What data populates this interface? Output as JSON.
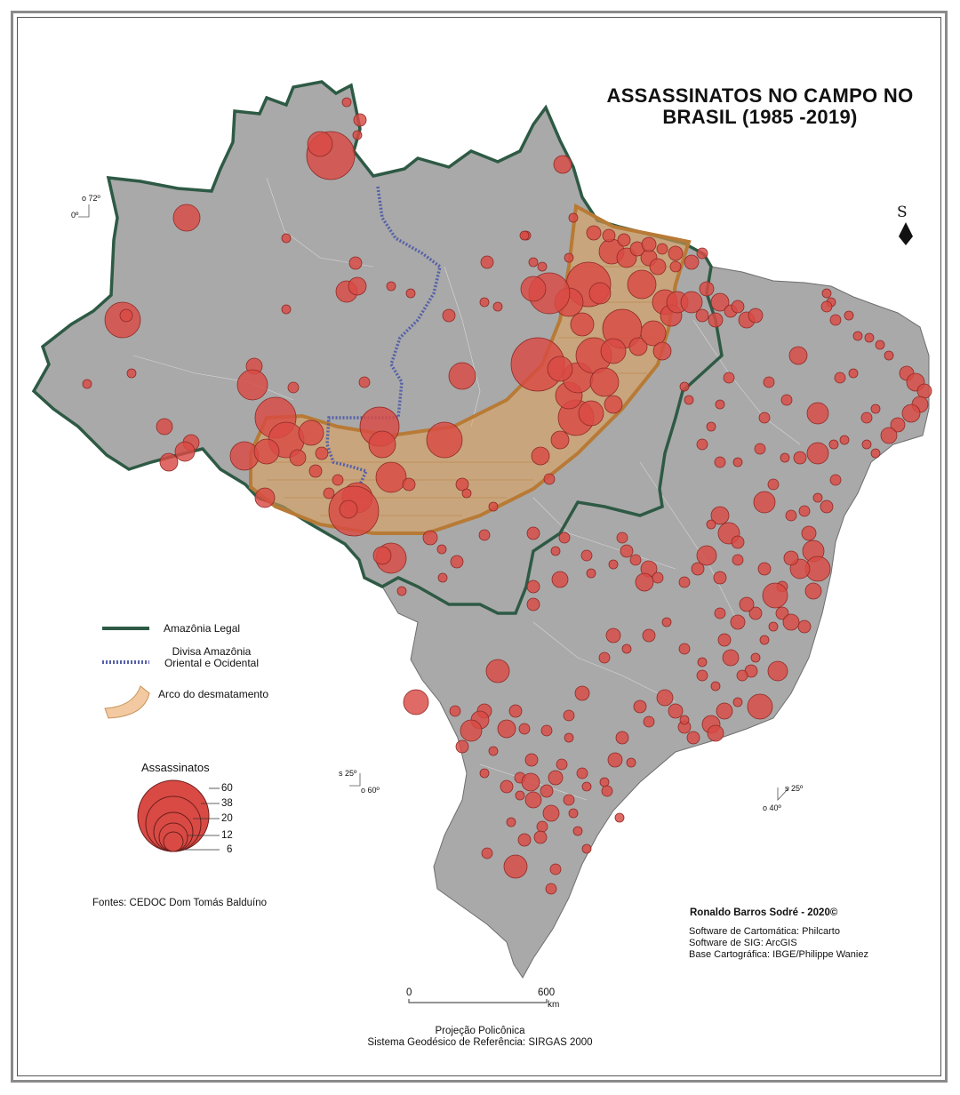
{
  "title": "ASSASSINATOS NO CAMPO NO BRASIL (1985 -2019)",
  "north_label": "S",
  "graticule": {
    "nw_lon": "o 72º",
    "nw_lat": "0º",
    "c_lat": "s 25º",
    "c_lon": "o 60º",
    "e_lat": "s 25º",
    "e_lon": "o 40º"
  },
  "legend": {
    "amazonia_legal": "Amazônia Legal",
    "divisa": "Divisa Amazônia Oriental e Ocidental",
    "arco": "Arco do desmatamento",
    "assassinatos_title": "Assassinatos",
    "sizes": [
      "60",
      "38",
      "20",
      "12",
      "6"
    ]
  },
  "colors": {
    "land": "#a9a9a9",
    "amazon_border": "#2e5a45",
    "divisa": "#5560a8",
    "arco_fill": "#e2a25a",
    "arco_stroke": "#b87a35",
    "circle_fill": "#d94a44",
    "circle_stroke": "#8e2a26"
  },
  "sources": "Fontes: CEDOC Dom Tomás Balduíno",
  "author": "Ronaldo Barros Sodré - 2020©",
  "credits": [
    "Software de Cartomática: Philcarto",
    "Software de SIG: ArcGIS",
    "Base Cartográfica: IBGE/Philippe Waniez"
  ],
  "scale": {
    "start": "0",
    "end": "600",
    "unit": "km"
  },
  "projection": [
    "Projeção Policônica",
    "Sistema Geodésico de Referência: SIRGAS 2000"
  ]
}
